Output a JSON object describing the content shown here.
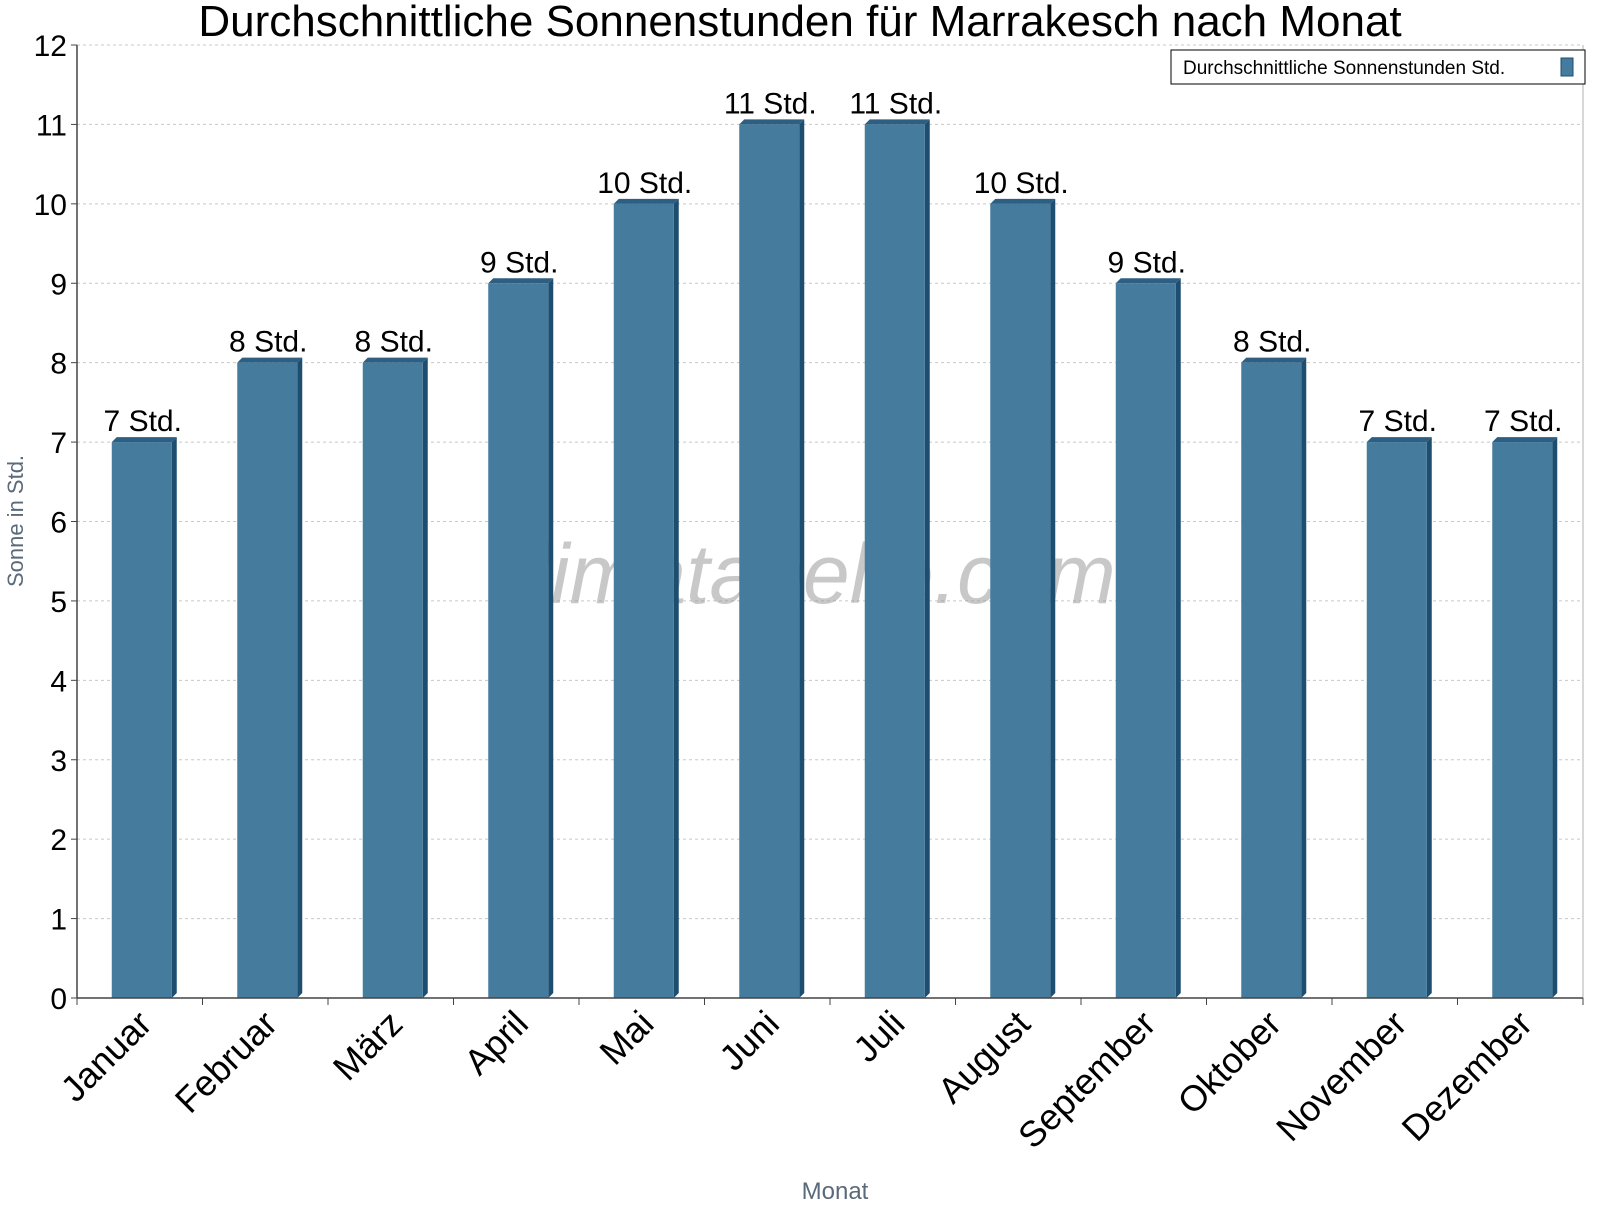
{
  "chart_data": {
    "type": "bar",
    "title": "Durchschnittliche Sonnenstunden für Marrakesch nach Monat",
    "xlabel": "Monat",
    "ylabel": "Sonne in Std.",
    "categories": [
      "Januar",
      "Februar",
      "März",
      "April",
      "Mai",
      "Juni",
      "Juli",
      "August",
      "September",
      "Oktober",
      "November",
      "Dezember"
    ],
    "series": [
      {
        "name": "Durchschnittliche Sonnenstunden Std.",
        "values": [
          7,
          8,
          8,
          9,
          10,
          11,
          11,
          10,
          9,
          8,
          7,
          7
        ],
        "labels": [
          "7 Std.",
          "8 Std.",
          "8 Std.",
          "9 Std.",
          "10 Std.",
          "11 Std.",
          "11 Std.",
          "10 Std.",
          "9 Std.",
          "8 Std.",
          "7 Std.",
          "7 Std."
        ]
      }
    ],
    "ylim": [
      0,
      12
    ],
    "yticks": [
      0,
      1,
      2,
      3,
      4,
      5,
      6,
      7,
      8,
      9,
      10,
      11,
      12
    ],
    "grid": true,
    "legend_position": "top-right",
    "watermark": "klimatabelle.com",
    "colors": {
      "bar": "#457b9d",
      "bar_side": "#1d4e70",
      "bar_top": "#2d5f82",
      "grid": "#c8c8c8",
      "axis": "#444444",
      "axis_title": "#5a6a7a"
    }
  }
}
